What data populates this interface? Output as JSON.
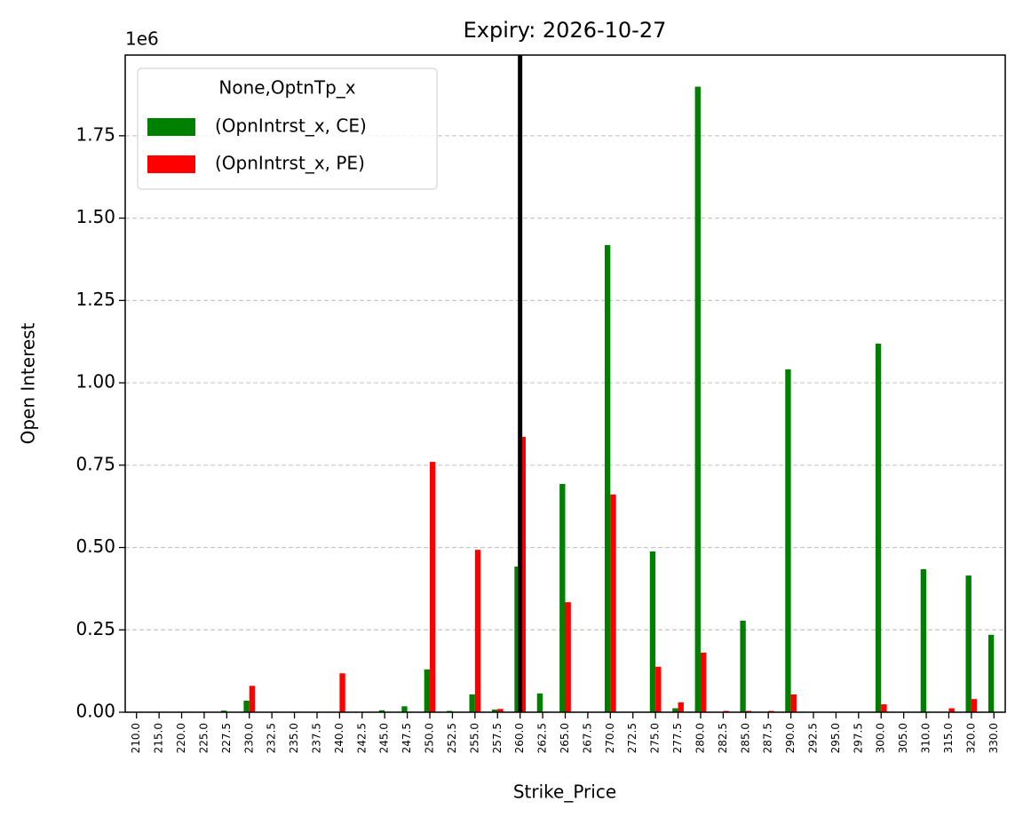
{
  "chart_data": {
    "type": "bar",
    "title": "Expiry: 2026-10-27",
    "xlabel": "Strike_Price",
    "ylabel": "Open Interest",
    "y_offset_label": "1e6",
    "legend_title": "None,OptnTp_x",
    "legend_position": "upper left",
    "grid": true,
    "categories": [
      "210.0",
      "215.0",
      "220.0",
      "225.0",
      "227.5",
      "230.0",
      "232.5",
      "235.0",
      "237.5",
      "240.0",
      "242.5",
      "245.0",
      "247.5",
      "250.0",
      "252.5",
      "255.0",
      "257.5",
      "260.0",
      "262.5",
      "265.0",
      "267.5",
      "270.0",
      "272.5",
      "275.0",
      "277.5",
      "280.0",
      "282.5",
      "285.0",
      "287.5",
      "290.0",
      "292.5",
      "295.0",
      "297.5",
      "300.0",
      "305.0",
      "310.0",
      "315.0",
      "320.0",
      "330.0"
    ],
    "series": [
      {
        "name": "(OpnIntrst_x, CE)",
        "color": "#008000",
        "values": [
          0,
          0,
          0,
          0,
          5000,
          35000,
          0,
          0,
          0,
          0,
          0,
          6000,
          18000,
          130000,
          4000,
          54000,
          8000,
          442000,
          57000,
          693000,
          0,
          1418000,
          0,
          488000,
          12000,
          1899000,
          0,
          278000,
          0,
          1041000,
          0,
          0,
          0,
          1119000,
          0,
          434000,
          0,
          415000,
          235000
        ]
      },
      {
        "name": "(OpnIntrst_x, PE)",
        "color": "#ff0000",
        "values": [
          0,
          0,
          0,
          0,
          0,
          80000,
          0,
          0,
          0,
          118000,
          0,
          0,
          0,
          760000,
          0,
          493000,
          10000,
          836000,
          0,
          334000,
          0,
          661000,
          0,
          138000,
          30000,
          181000,
          4000,
          4000,
          4000,
          54000,
          0,
          0,
          0,
          24000,
          0,
          0,
          12000,
          40000,
          0
        ]
      }
    ],
    "vline": {
      "x": 17,
      "color": "#000000"
    },
    "ylim": [
      0,
      1995000
    ],
    "yticks": [
      {
        "value": 0,
        "label": "0.00"
      },
      {
        "value": 250000,
        "label": "0.25"
      },
      {
        "value": 500000,
        "label": "0.50"
      },
      {
        "value": 750000,
        "label": "0.75"
      },
      {
        "value": 1000000,
        "label": "1.00"
      },
      {
        "value": 1250000,
        "label": "1.25"
      },
      {
        "value": 1500000,
        "label": "1.50"
      },
      {
        "value": 1750000,
        "label": "1.75"
      }
    ]
  }
}
